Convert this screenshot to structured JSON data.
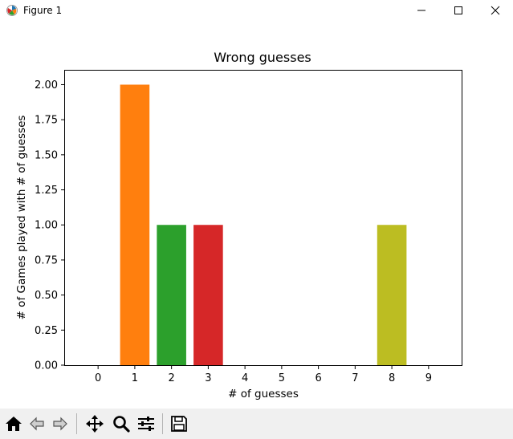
{
  "window": {
    "title": "Figure 1",
    "controls": [
      "minimize",
      "maximize",
      "close"
    ]
  },
  "toolbar": {
    "tools": [
      {
        "name": "home",
        "icon": "home-icon"
      },
      {
        "name": "back",
        "icon": "arrow-left-icon"
      },
      {
        "name": "forward",
        "icon": "arrow-right-icon"
      },
      {
        "name": "pan",
        "icon": "move-icon"
      },
      {
        "name": "zoom",
        "icon": "magnifier-icon"
      },
      {
        "name": "configure-subplots",
        "icon": "sliders-icon"
      },
      {
        "name": "save",
        "icon": "floppy-disk-icon"
      }
    ]
  },
  "chart_data": {
    "type": "bar",
    "title": "Wrong guesses",
    "xlabel": "# of guesses",
    "ylabel": "# of Games played with # of guesses",
    "categories": [
      "0",
      "1",
      "2",
      "3",
      "4",
      "5",
      "6",
      "7",
      "8",
      "9"
    ],
    "values": [
      0,
      2,
      1,
      1,
      0,
      0,
      0,
      0,
      1,
      0
    ],
    "colors": [
      "#1f77b4",
      "#ff7f0e",
      "#2ca02c",
      "#d62728",
      "#9467bd",
      "#8c564b",
      "#e377c2",
      "#7f7f7f",
      "#bcbd22",
      "#17becf"
    ],
    "ylim": [
      0,
      2.1
    ],
    "yticks": [
      "0.00",
      "0.25",
      "0.50",
      "0.75",
      "1.00",
      "1.25",
      "1.50",
      "1.75",
      "2.00"
    ],
    "grid": false,
    "legend": "none"
  }
}
